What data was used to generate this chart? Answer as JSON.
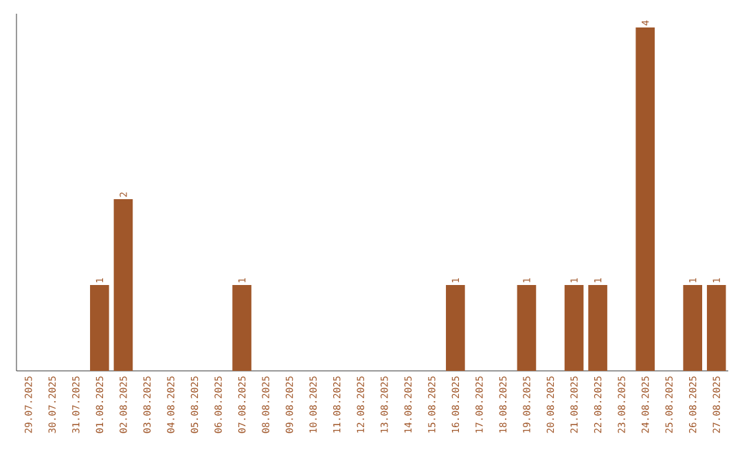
{
  "chart_data": {
    "type": "bar",
    "categories": [
      "29.07.2025",
      "30.07.2025",
      "31.07.2025",
      "01.08.2025",
      "02.08.2025",
      "03.08.2025",
      "04.08.2025",
      "05.08.2025",
      "06.08.2025",
      "07.08.2025",
      "08.08.2025",
      "09.08.2025",
      "10.08.2025",
      "11.08.2025",
      "12.08.2025",
      "13.08.2025",
      "14.08.2025",
      "15.08.2025",
      "16.08.2025",
      "17.08.2025",
      "18.08.2025",
      "19.08.2025",
      "20.08.2025",
      "21.08.2025",
      "22.08.2025",
      "23.08.2025",
      "24.08.2025",
      "25.08.2025",
      "26.08.2025",
      "27.08.2025"
    ],
    "values": [
      0,
      0,
      0,
      1,
      2,
      0,
      0,
      0,
      0,
      1,
      0,
      0,
      0,
      0,
      0,
      0,
      0,
      0,
      1,
      0,
      0,
      1,
      0,
      1,
      1,
      0,
      4,
      0,
      1,
      1
    ],
    "value_labels": [
      null,
      null,
      null,
      "1",
      "2",
      null,
      null,
      null,
      null,
      "1",
      null,
      null,
      null,
      null,
      null,
      null,
      null,
      null,
      "1",
      null,
      null,
      "1",
      null,
      "1",
      "1",
      null,
      "4",
      null,
      "1",
      "1"
    ],
    "color": "#a0572a"
  }
}
